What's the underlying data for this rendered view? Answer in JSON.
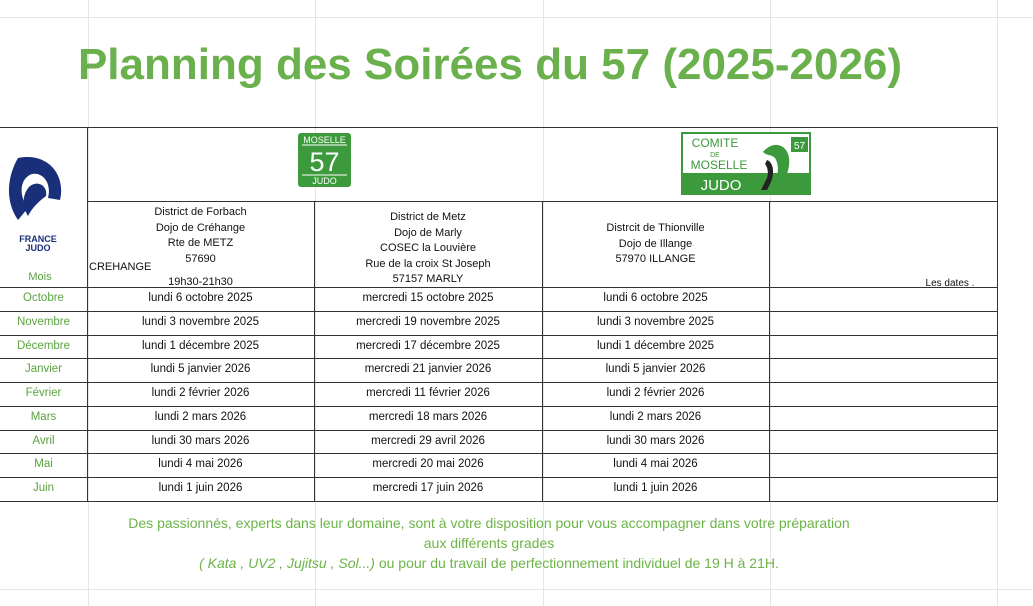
{
  "title": "Planning des Soirées du 57 (2025-2026)",
  "logos": {
    "france_judo": [
      "FRANCE",
      "JUDO"
    ],
    "moselle": [
      "MOSELLE",
      "57",
      "JUDO"
    ],
    "comite": [
      "COMITE",
      "DE",
      "MOSELLE",
      "JUDO",
      "57"
    ]
  },
  "table": {
    "month_header": "Mois",
    "venues": [
      {
        "lines": [
          "District de Forbach",
          "Dojo de Créhange",
          "Rte de METZ",
          "57690"
        ],
        "town": "CREHANGE",
        "hours": "19h30-21h30"
      },
      {
        "lines": [
          "District de Metz",
          "Dojo de Marly",
          "COSEC la Louvière",
          "Rue de la croix St Joseph",
          "57157 MARLY"
        ]
      },
      {
        "lines": [
          "Distrcit de Thionville",
          "Dojo de Illange",
          "57970 ILLANGE"
        ]
      }
    ],
    "dates_header": "Les dates .",
    "rows": [
      [
        "Octobre",
        "lundi 6 octobre 2025",
        "mercredi 15 octobre 2025",
        "lundi 6 octobre 2025"
      ],
      [
        "Novembre",
        "lundi 3 novembre 2025",
        "mercredi 19 novembre 2025",
        "lundi 3 novembre 2025"
      ],
      [
        "Décembre",
        "lundi 1 décembre 2025",
        "mercredi 17 décembre 2025",
        "lundi 1 décembre 2025"
      ],
      [
        "Janvier",
        "lundi 5 janvier 2026",
        "mercredi 21 janvier 2026",
        "lundi 5 janvier 2026"
      ],
      [
        "Février",
        "lundi 2 février 2026",
        "mercredi 11 février 2026",
        "lundi 2 février 2026"
      ],
      [
        "Mars",
        "lundi 2 mars 2026",
        "mercredi 18 mars 2026",
        "lundi 2 mars 2026"
      ],
      [
        "Avril",
        "lundi 30 mars 2026",
        "mercredi 29 avril 2026",
        "lundi 30 mars 2026"
      ],
      [
        "Mai",
        "lundi 4 mai 2026",
        "mercredi 20 mai 2026",
        "lundi 4 mai 2026"
      ],
      [
        "Juin",
        "lundi 1 juin 2026",
        "mercredi 17 juin 2026",
        "lundi 1 juin 2026"
      ]
    ]
  },
  "footer": {
    "line1": "Des passionnés, experts dans leur domaine, sont à votre disposition pour vous  accompagner dans votre préparation",
    "line2": "aux différents grades",
    "line3_italic": "( Kata , UV2 , Jujitsu , Sol...)",
    "line3_rest": " ou pour du travail  de perfectionnement individuel de 19 H à 21H."
  }
}
